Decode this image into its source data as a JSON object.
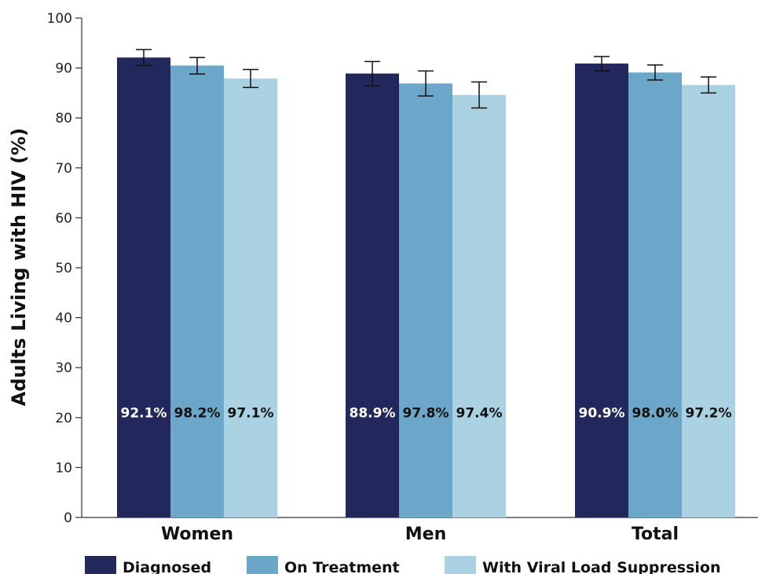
{
  "chart_data": {
    "type": "bar",
    "ylabel": "Adults Living with HIV (%)",
    "xlabel": "",
    "ylim": [
      0,
      100
    ],
    "yticks": [
      0,
      10,
      20,
      30,
      40,
      50,
      60,
      70,
      80,
      90,
      100
    ],
    "grid": false,
    "legend_position": "bottom",
    "categories": [
      "Women",
      "Men",
      "Total"
    ],
    "series": [
      {
        "name": "Diagnosed",
        "color": "#23285c",
        "values": [
          92.1,
          88.9,
          90.9
        ],
        "error_low": [
          90.5,
          86.4,
          89.4
        ],
        "error_high": [
          93.7,
          91.3,
          92.3
        ],
        "labels": [
          "92.1%",
          "88.9%",
          "90.9%"
        ],
        "label_style": "dark"
      },
      {
        "name": "On Treatment",
        "color": "#6ca6c8",
        "values": [
          90.5,
          86.9,
          89.1
        ],
        "error_low": [
          88.8,
          84.4,
          87.6
        ],
        "error_high": [
          92.1,
          89.4,
          90.6
        ],
        "labels": [
          "98.2%",
          "97.8%",
          "98.0%"
        ],
        "label_style": "light"
      },
      {
        "name": "With Viral Load Suppression",
        "color": "#abd2e2",
        "values": [
          87.9,
          84.6,
          86.6
        ],
        "error_low": [
          86.1,
          82.0,
          85.0
        ],
        "error_high": [
          89.7,
          87.2,
          88.2
        ],
        "labels": [
          "97.1%",
          "97.4%",
          "97.2%"
        ],
        "label_style": "light"
      }
    ],
    "data_label_y_value": 21
  }
}
